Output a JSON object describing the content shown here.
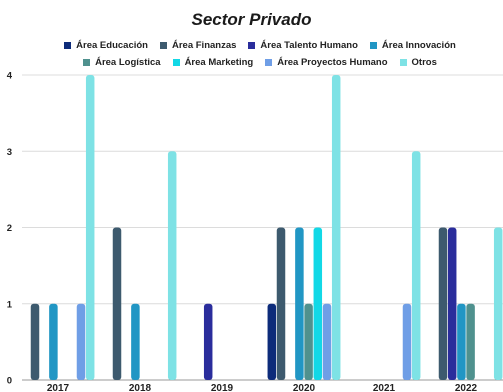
{
  "chart_data": {
    "type": "bar",
    "title": "Sector Privado",
    "categories": [
      "2017",
      "2018",
      "2019",
      "2020",
      "2021",
      "2022"
    ],
    "ylim": [
      0,
      4
    ],
    "yticks": [
      "0",
      "1",
      "2",
      "3",
      "4"
    ],
    "grid": true,
    "legend_position": "top",
    "series": [
      {
        "name": "Área Educación",
        "color": "#0d2b7a",
        "values": [
          0,
          0,
          0,
          1,
          0,
          0
        ]
      },
      {
        "name": "Área Finanzas",
        "color": "#3d5a6e",
        "values": [
          1,
          2,
          0,
          2,
          0,
          2
        ]
      },
      {
        "name": "Área Talento Humano",
        "color": "#2a2d9c",
        "values": [
          0,
          0,
          1,
          0,
          0,
          2
        ]
      },
      {
        "name": "Área Innovación",
        "color": "#2196c4",
        "values": [
          1,
          1,
          0,
          2,
          0,
          1
        ]
      },
      {
        "name": "Área Logística",
        "color": "#4f918e",
        "values": [
          0,
          0,
          0,
          1,
          0,
          1
        ]
      },
      {
        "name": "Área Marketing",
        "color": "#12d8e6",
        "values": [
          0,
          0,
          0,
          2,
          0,
          0
        ]
      },
      {
        "name": "Área Proyectos Humano",
        "color": "#6f9ee6",
        "values": [
          1,
          0,
          0,
          1,
          1,
          0
        ]
      },
      {
        "name": "Otros",
        "color": "#7ee2e5",
        "values": [
          4,
          3,
          0,
          4,
          3,
          2
        ]
      }
    ]
  }
}
